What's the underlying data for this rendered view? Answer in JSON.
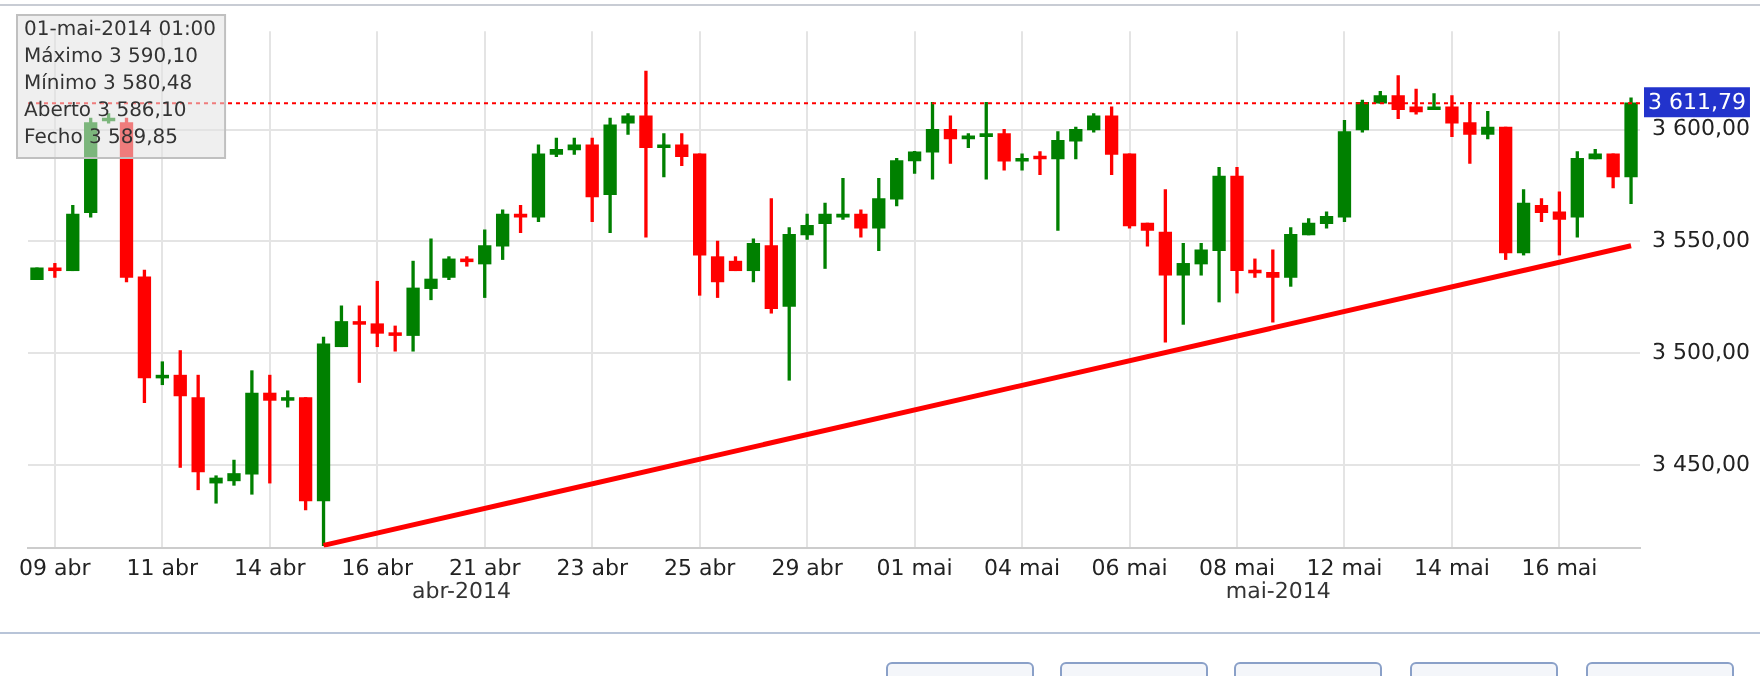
{
  "chart_data": {
    "type": "candlestick",
    "categories": [
      null,
      "09 abr",
      null,
      null,
      null,
      null,
      null,
      "11 abr",
      null,
      null,
      null,
      null,
      null,
      "14 abr",
      null,
      null,
      null,
      null,
      null,
      "16 abr",
      null,
      null,
      null,
      null,
      null,
      "21 abr",
      null,
      null,
      null,
      null,
      null,
      "23 abr",
      null,
      null,
      null,
      null,
      null,
      "25 abr",
      null,
      null,
      null,
      null,
      null,
      "29 abr",
      null,
      null,
      null,
      null,
      null,
      "01 mai",
      null,
      null,
      null,
      null,
      null,
      "04 mai",
      null,
      null,
      null,
      null,
      null,
      "06 mai",
      null,
      null,
      null,
      null,
      null,
      "08 mai",
      null,
      null,
      null,
      null,
      null,
      "12 mai",
      null,
      null,
      null,
      null,
      null,
      "14 mai",
      null,
      null,
      null,
      null,
      null,
      "16 mai",
      null,
      null,
      null,
      null
    ],
    "ohlc": [
      [
        3533,
        3538,
        3533,
        3538
      ],
      [
        3538,
        3540,
        3534,
        3537
      ],
      [
        3537,
        3566,
        3537,
        3562
      ],
      [
        3563,
        3605,
        3561,
        3603
      ],
      [
        3604,
        3607,
        3603,
        3605
      ],
      [
        3603,
        3605,
        3532,
        3534
      ],
      [
        3534,
        3537,
        3478,
        3489
      ],
      [
        3489,
        3496,
        3486,
        3490
      ],
      [
        3490,
        3501,
        3449,
        3481
      ],
      [
        3480,
        3490,
        3439,
        3447
      ],
      [
        3442,
        3445,
        3433,
        3444
      ],
      [
        3443,
        3452,
        3441,
        3446
      ],
      [
        3446,
        3492,
        3437,
        3482
      ],
      [
        3482,
        3490,
        3442,
        3479
      ],
      [
        3479,
        3483,
        3476,
        3480
      ],
      [
        3480,
        3480,
        3430,
        3434
      ],
      [
        3434,
        3507,
        3414,
        3504
      ],
      [
        3503,
        3521,
        3503,
        3514
      ],
      [
        3514,
        3521,
        3487,
        3513
      ],
      [
        3513,
        3532,
        3503,
        3509
      ],
      [
        3509,
        3512,
        3501,
        3508
      ],
      [
        3508,
        3541,
        3501,
        3529
      ],
      [
        3529,
        3551,
        3524,
        3533
      ],
      [
        3534,
        3543,
        3533,
        3542
      ],
      [
        3542,
        3543,
        3539,
        3541
      ],
      [
        3540,
        3555,
        3525,
        3548
      ],
      [
        3548,
        3564,
        3542,
        3562
      ],
      [
        3562,
        3566,
        3554,
        3561
      ],
      [
        3561,
        3593,
        3559,
        3589
      ],
      [
        3589,
        3596,
        3588,
        3591
      ],
      [
        3591,
        3596,
        3589,
        3593
      ],
      [
        3593,
        3596,
        3559,
        3570
      ],
      [
        3571,
        3605,
        3554,
        3602
      ],
      [
        3603,
        3607,
        3598,
        3606
      ],
      [
        3606,
        3626,
        3552,
        3592
      ],
      [
        3592,
        3598,
        3579,
        3593
      ],
      [
        3593,
        3598,
        3584,
        3588
      ],
      [
        3589,
        3589,
        3526,
        3544
      ],
      [
        3543,
        3550,
        3525,
        3532
      ],
      [
        3541,
        3543,
        3537,
        3537
      ],
      [
        3537,
        3551,
        3532,
        3549
      ],
      [
        3548,
        3569,
        3518,
        3520
      ],
      [
        3521,
        3556,
        3488,
        3553
      ],
      [
        3553,
        3562,
        3551,
        3557
      ],
      [
        3558,
        3567,
        3538,
        3562
      ],
      [
        3561,
        3578,
        3560,
        3562
      ],
      [
        3562,
        3564,
        3552,
        3556
      ],
      [
        3556,
        3578,
        3546,
        3569
      ],
      [
        3569,
        3587,
        3566,
        3586
      ],
      [
        3586.1,
        3590.1,
        3580.48,
        3589.85
      ],
      [
        3590,
        3612,
        3578,
        3600
      ],
      [
        3600,
        3606,
        3585,
        3596
      ],
      [
        3596,
        3598,
        3592,
        3597
      ],
      [
        3597,
        3612,
        3578,
        3598
      ],
      [
        3598,
        3600,
        3582,
        3586
      ],
      [
        3586,
        3589,
        3582,
        3587
      ],
      [
        3588,
        3590,
        3580,
        3587
      ],
      [
        3587,
        3599,
        3555,
        3595
      ],
      [
        3595,
        3601,
        3587,
        3600
      ],
      [
        3600,
        3607,
        3599,
        3606
      ],
      [
        3606,
        3610,
        3580,
        3589
      ],
      [
        3589,
        3589,
        3556,
        3557
      ],
      [
        3558,
        3558,
        3548,
        3555
      ],
      [
        3554,
        3573,
        3505,
        3535
      ],
      [
        3535,
        3549,
        3513,
        3540
      ],
      [
        3540,
        3549,
        3535,
        3546
      ],
      [
        3546,
        3583,
        3523,
        3579
      ],
      [
        3579,
        3583,
        3527,
        3537
      ],
      [
        3537,
        3542,
        3534,
        3536
      ],
      [
        3536,
        3546,
        3514,
        3534
      ],
      [
        3534,
        3556,
        3530,
        3553
      ],
      [
        3553,
        3560,
        3553,
        3558
      ],
      [
        3558,
        3563,
        3556,
        3561
      ],
      [
        3561,
        3604,
        3559,
        3599
      ],
      [
        3600,
        3613,
        3599,
        3612
      ],
      [
        3612,
        3617,
        3612,
        3615
      ],
      [
        3615,
        3624,
        3605,
        3609
      ],
      [
        3610,
        3618,
        3607,
        3608
      ],
      [
        3609,
        3616,
        3609,
        3610
      ],
      [
        3610,
        3615,
        3597,
        3603
      ],
      [
        3603,
        3612,
        3585,
        3598
      ],
      [
        3598,
        3608,
        3596,
        3601
      ],
      [
        3601,
        3601,
        3542,
        3545
      ],
      [
        3545,
        3573,
        3544,
        3567
      ],
      [
        3566,
        3569,
        3559,
        3563
      ],
      [
        3563,
        3572,
        3544,
        3560
      ],
      [
        3561,
        3590,
        3552,
        3587
      ],
      [
        3587,
        3591,
        3587,
        3589
      ],
      [
        3589,
        3589,
        3574,
        3579
      ],
      [
        3579,
        3614,
        3567,
        3611.79
      ]
    ],
    "colors": [
      "#008000",
      "#ff0000",
      "#008000",
      "#008000",
      "#008000",
      "#ff0000",
      "#ff0000",
      "#008000",
      "#ff0000",
      "#ff0000",
      "#008000",
      "#008000",
      "#008000",
      "#ff0000",
      "#008000",
      "#ff0000",
      "#008000",
      "#008000",
      "#ff0000",
      "#ff0000",
      "#ff0000",
      "#008000",
      "#008000",
      "#008000",
      "#ff0000",
      "#008000",
      "#008000",
      "#ff0000",
      "#008000",
      "#008000",
      "#008000",
      "#ff0000",
      "#008000",
      "#008000",
      "#ff0000",
      "#008000",
      "#ff0000",
      "#ff0000",
      "#ff0000",
      "#ff0000",
      "#008000",
      "#ff0000",
      "#008000",
      "#008000",
      "#008000",
      "#008000",
      "#ff0000",
      "#008000",
      "#008000",
      "#008000",
      "#008000",
      "#ff0000",
      "#008000",
      "#008000",
      "#ff0000",
      "#008000",
      "#ff0000",
      "#008000",
      "#008000",
      "#008000",
      "#ff0000",
      "#ff0000",
      "#ff0000",
      "#ff0000",
      "#008000",
      "#008000",
      "#008000",
      "#ff0000",
      "#ff0000",
      "#ff0000",
      "#008000",
      "#008000",
      "#008000",
      "#008000",
      "#008000",
      "#008000",
      "#ff0000",
      "#ff0000",
      "#008000",
      "#ff0000",
      "#ff0000",
      "#008000",
      "#ff0000",
      "#008000",
      "#ff0000",
      "#ff0000",
      "#008000",
      "#008000",
      "#ff0000",
      "#008000"
    ],
    "series": [
      {
        "type": "line",
        "color": "#ff0000",
        "values": [
          null,
          null,
          null,
          null,
          null,
          null,
          null,
          null,
          null,
          null,
          null,
          null,
          null,
          null,
          null,
          null,
          3414,
          null,
          null,
          null,
          null,
          null,
          null,
          null,
          null,
          null,
          null,
          null,
          null,
          null,
          null,
          null,
          null,
          null,
          null,
          null,
          null,
          null,
          null,
          null,
          null,
          null,
          null,
          null,
          null,
          null,
          null,
          null,
          null,
          null,
          null,
          null,
          null,
          null,
          null,
          null,
          null,
          null,
          null,
          null,
          null,
          null,
          null,
          null,
          null,
          null,
          null,
          null,
          null,
          null,
          null,
          null,
          null,
          null,
          null,
          null,
          null,
          null,
          null,
          null,
          null,
          null,
          null,
          null,
          null,
          null,
          null,
          null,
          null,
          3548
        ]
      }
    ],
    "ylim": [
      3413,
      3644
    ],
    "yticks": [
      {
        "value": 3450,
        "label": "3 450,00"
      },
      {
        "value": 3500,
        "label": "3 500,00"
      },
      {
        "value": 3550,
        "label": "3 550,00"
      },
      {
        "value": 3600,
        "label": "3 600,00"
      }
    ],
    "ref_lines": [
      {
        "axis": "y",
        "value": 3611.79,
        "label": "3 611,79",
        "color": "#ff0000",
        "line_style": "dotted"
      }
    ],
    "annotations": [
      "01-mai-2014 01:00",
      "Máximo 3 590,10",
      "Mínimo 3 580,48",
      "Aberto 3 586,10",
      "Fecho 3 589,85",
      "abr-2014",
      "mai-2014"
    ],
    "grid": true,
    "legend": false
  }
}
